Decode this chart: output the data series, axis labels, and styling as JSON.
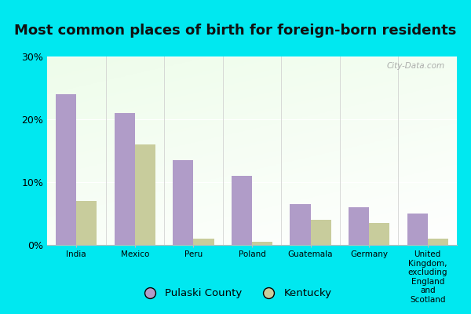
{
  "title": "Most common places of birth for foreign-born residents",
  "categories": [
    "India",
    "Mexico",
    "Peru",
    "Poland",
    "Guatemala",
    "Germany",
    "United\nKingdom,\nexcluding\nEngland\nand\nScotland"
  ],
  "pulaski_values": [
    24,
    21,
    13.5,
    11,
    6.5,
    6,
    5
  ],
  "kentucky_values": [
    7,
    16,
    1,
    0.5,
    4,
    3.5,
    1
  ],
  "pulaski_color": "#b09cc8",
  "kentucky_color": "#c8cc9c",
  "ylim": [
    0,
    30
  ],
  "yticks": [
    0,
    10,
    20,
    30
  ],
  "ytick_labels": [
    "0%",
    "10%",
    "20%",
    "30%"
  ],
  "bg_bottom_left": "#c8e8b0",
  "bg_top_right": "#f0fff0",
  "outer_background": "#00e8f0",
  "title_fontsize": 13,
  "title_color": "#111111",
  "watermark": "City-Data.com",
  "legend_labels": [
    "Pulaski County",
    "Kentucky"
  ],
  "bar_width": 0.35
}
